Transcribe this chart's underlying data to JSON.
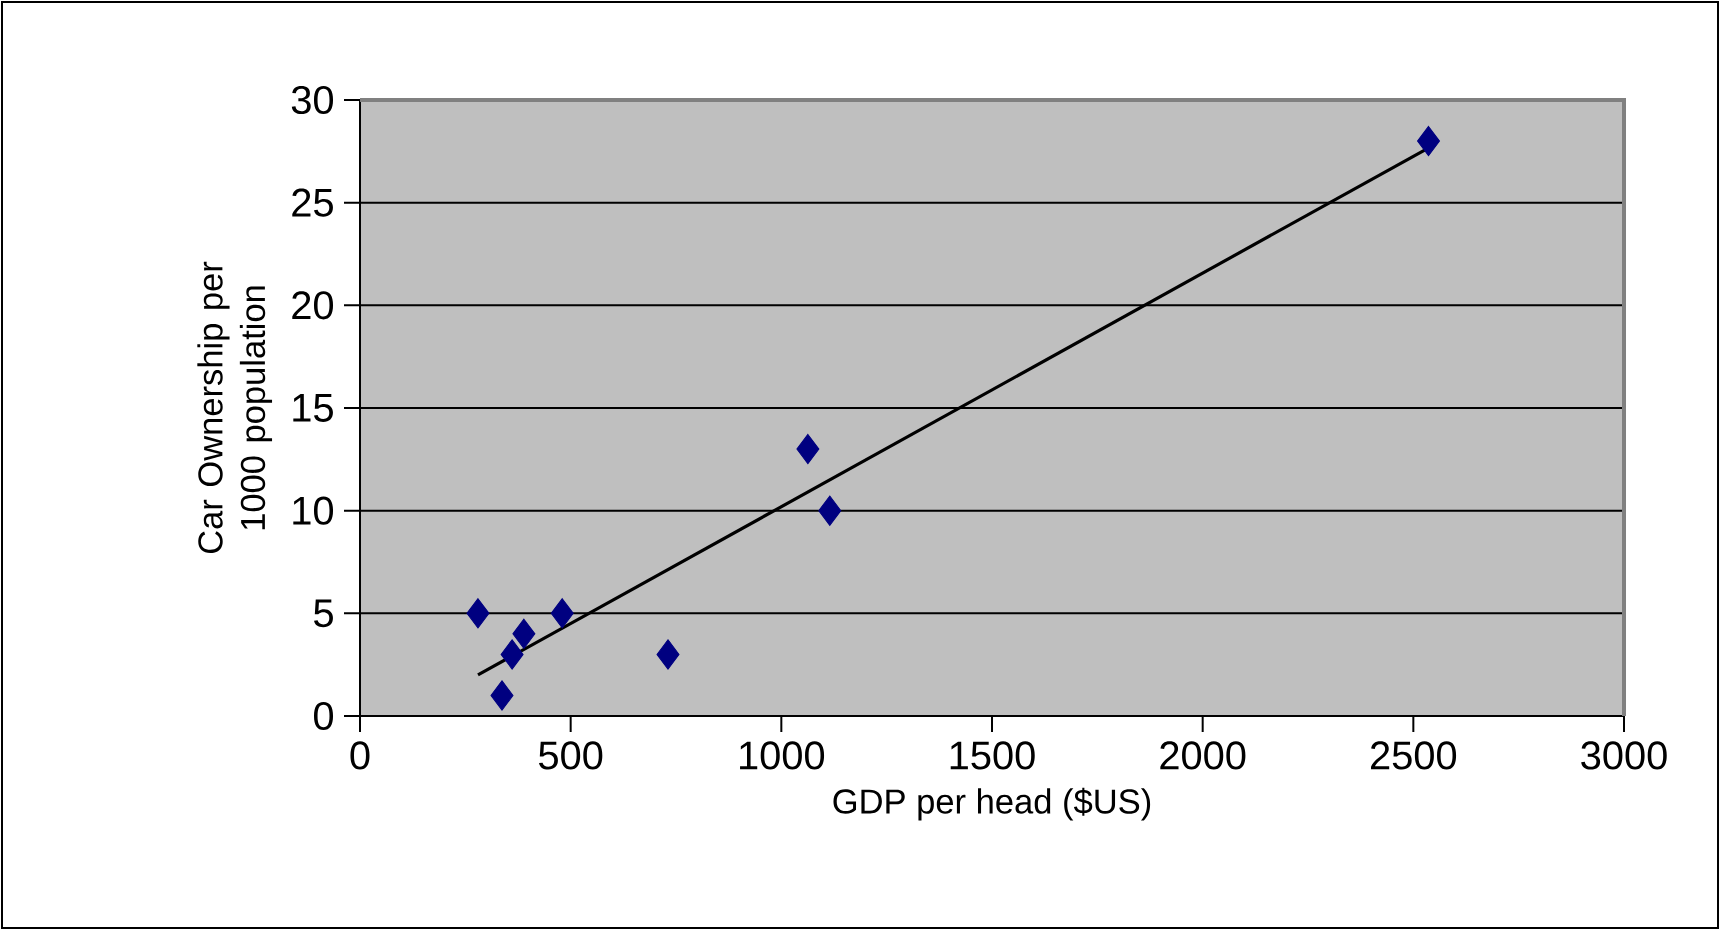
{
  "chart_data": {
    "type": "scatter",
    "xlabel": "GDP per head ($US)",
    "ylabel": "Car Ownership per 1000 population",
    "xlim": [
      0,
      3000
    ],
    "xticks": [
      0,
      500,
      1000,
      1500,
      2000,
      2500,
      3000
    ],
    "ylim": [
      0,
      30
    ],
    "yticks": [
      0,
      5,
      10,
      15,
      20,
      25,
      30
    ],
    "grid": "y",
    "series": [
      {
        "color": "#000080",
        "marker": "diamond",
        "x": [
          280,
          337,
          361,
          389,
          480,
          731,
          1063,
          1115,
          2536
        ],
        "values": [
          5,
          1,
          3,
          4,
          5,
          3,
          13,
          10,
          28
        ]
      },
      {
        "type": "line",
        "color": "#000000",
        "marker": "none",
        "line_style": "solid",
        "x": [
          280,
          2530
        ],
        "values": [
          2.0,
          27.6
        ]
      }
    ]
  }
}
